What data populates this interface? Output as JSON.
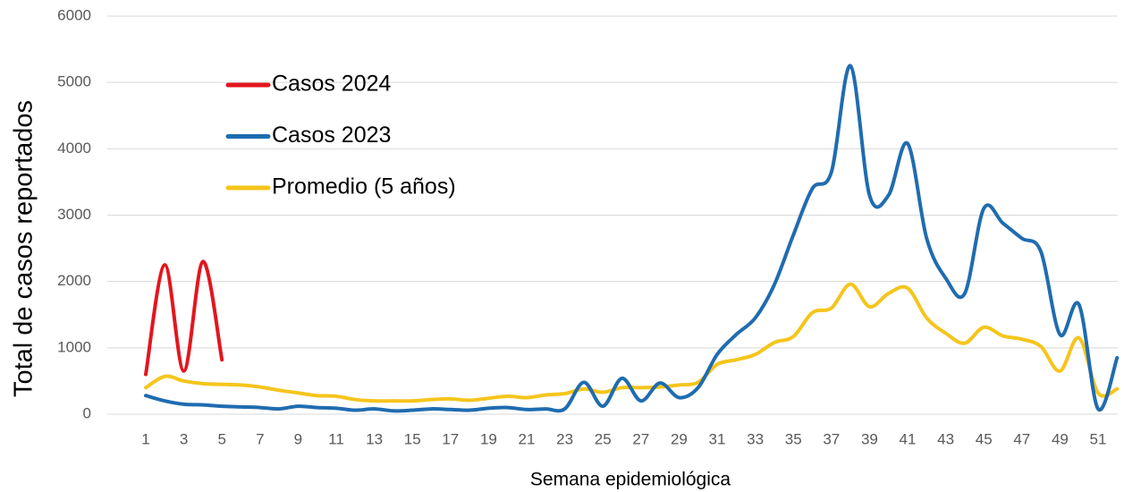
{
  "chart_data": {
    "type": "line",
    "x_label": "Semana epidemiológica",
    "y_label": "Total de casos reportados",
    "categories": [
      "1",
      null,
      "3",
      null,
      "5",
      null,
      "7",
      null,
      "9",
      null,
      "11",
      null,
      "13",
      null,
      "15",
      null,
      "17",
      null,
      "19",
      null,
      "21",
      null,
      "23",
      null,
      "25",
      null,
      "27",
      null,
      "29",
      null,
      "31",
      null,
      "33",
      null,
      "35",
      null,
      "37",
      null,
      "39",
      null,
      "41",
      null,
      "43",
      null,
      "45",
      null,
      "47",
      null,
      "49",
      null,
      "51",
      null
    ],
    "ylim": [
      0,
      6000
    ],
    "yticks": [
      0,
      1000,
      2000,
      3000,
      4000,
      5000,
      6000
    ],
    "grid": true,
    "legend": "upper left",
    "series": [
      {
        "name": "Casos 2024",
        "color": "#e3161e",
        "values": [
          600,
          2250,
          650,
          2300,
          820,
          null,
          null,
          null,
          null,
          null,
          null,
          null,
          null,
          null,
          null,
          null,
          null,
          null,
          null,
          null,
          null,
          null,
          null,
          null,
          null,
          null,
          null,
          null,
          null,
          null,
          null,
          null,
          null,
          null,
          null,
          null,
          null,
          null,
          null,
          null,
          null,
          null,
          null,
          null,
          null,
          null,
          null,
          null,
          null,
          null,
          null,
          null
        ]
      },
      {
        "name": "Casos 2023",
        "color": "#1f6cb0",
        "values": [
          280,
          200,
          150,
          140,
          120,
          110,
          100,
          80,
          120,
          100,
          90,
          60,
          80,
          50,
          60,
          80,
          70,
          60,
          90,
          100,
          70,
          80,
          80,
          480,
          120,
          540,
          200,
          470,
          250,
          400,
          900,
          1200,
          1450,
          1950,
          2700,
          3400,
          3650,
          5250,
          3300,
          3300,
          4080,
          2650,
          2050,
          1820,
          3100,
          2880,
          2650,
          2450,
          1200,
          1650,
          80,
          850
        ]
      },
      {
        "name": "Promedio (5 años)",
        "color": "#f5c51c",
        "values": [
          400,
          570,
          500,
          460,
          450,
          440,
          410,
          360,
          320,
          280,
          270,
          220,
          200,
          200,
          200,
          220,
          230,
          210,
          240,
          270,
          250,
          290,
          310,
          380,
          330,
          400,
          400,
          410,
          440,
          480,
          750,
          820,
          900,
          1080,
          1170,
          1530,
          1600,
          1960,
          1620,
          1820,
          1900,
          1450,
          1220,
          1070,
          1310,
          1180,
          1130,
          1020,
          650,
          1150,
          320,
          380
        ]
      }
    ]
  }
}
